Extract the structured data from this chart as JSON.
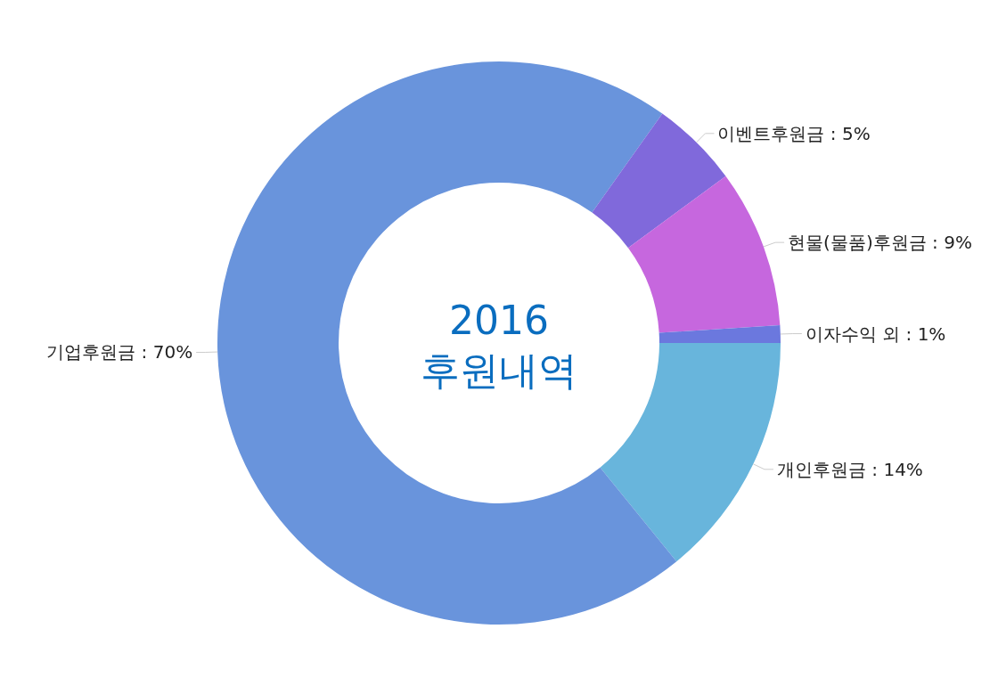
{
  "chart_data": {
    "type": "donut",
    "title": "2016\n후원내역",
    "categories": [
      "개인후원금",
      "기업후원금",
      "이벤트후원금",
      "현물(물품)후원금",
      "이자수익 외"
    ],
    "values": [
      14,
      70,
      5,
      9,
      1
    ],
    "value_labels": [
      "14%",
      "70%",
      "5%",
      "9%",
      "1%"
    ],
    "colors": [
      "#68b5dc",
      "#6994dc",
      "#8069db",
      "#c667de",
      "#6b78de"
    ],
    "legend": false
  }
}
